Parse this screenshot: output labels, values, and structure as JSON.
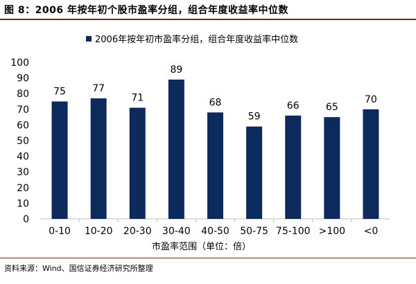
{
  "figure": {
    "title": "图 8：2006 年按年初个股市盈率分组，组合年度收益率中位数",
    "source": "资料来源：Wind、国信证券经济研究所整理"
  },
  "colors": {
    "bar": "#0d2a5c",
    "rule": "#8b1a1a",
    "axis": "#bfbfbf",
    "text": "#000000"
  },
  "chart_data": {
    "type": "bar",
    "categories": [
      "0-10",
      "10-20",
      "20-30",
      "30-40",
      "40-50",
      "50-75",
      "75-100",
      ">100",
      "<0"
    ],
    "series": [
      {
        "name": "2006年按年初市盈率分组，组合年度收益率中位数",
        "values": [
          75,
          77,
          71,
          89,
          68,
          59,
          66,
          65,
          70
        ]
      }
    ],
    "xlabel": "市盈率范围（单位：倍）",
    "ylabel": "",
    "ylim": [
      0,
      100
    ],
    "yticks": [
      0,
      10,
      20,
      30,
      40,
      50,
      60,
      70,
      80,
      90,
      100
    ],
    "grid": false,
    "legend": "top-center",
    "data_labels": true
  }
}
